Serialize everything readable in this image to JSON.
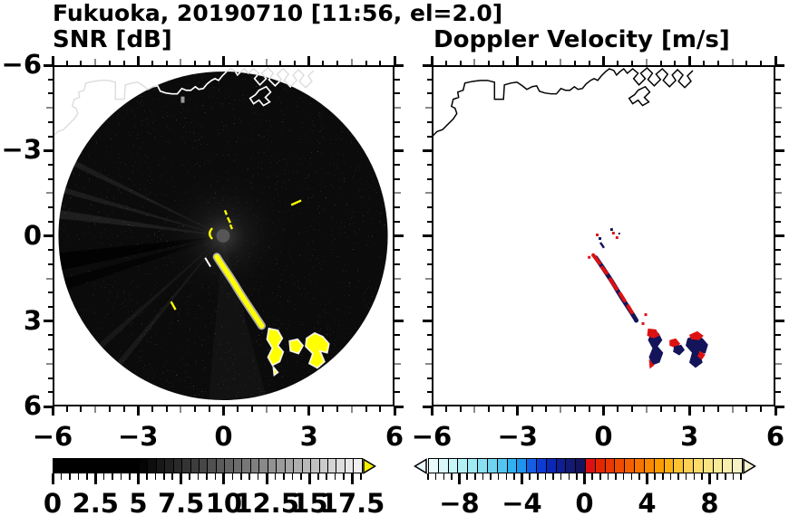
{
  "title": "Fukuoka, 20190710 [11:56, el=2.0]",
  "chart_data": {
    "type": "heatmap",
    "title": "Fukuoka, 20190710 [11:56, el=2.0]",
    "station": "Fukuoka",
    "date": "20190710",
    "time": "11:56",
    "elevation_deg": 2.0,
    "axes": {
      "xlim": [
        -6,
        6
      ],
      "ylim": [
        -6,
        6
      ],
      "x_major_ticks": [
        -6,
        -3,
        0,
        3,
        6
      ],
      "y_major_ticks": [
        -6,
        -3,
        0,
        3,
        6
      ],
      "x_tick_labels": [
        "−6",
        "−3",
        "0",
        "3",
        "6"
      ],
      "y_tick_labels": [
        "6",
        "3",
        "0",
        "−3",
        "−6"
      ],
      "minor_tick_step": 0.5,
      "mid_gray_ticks": [
        -4.5,
        -1.5,
        1.5,
        4.5
      ],
      "grid": false
    },
    "panels": [
      {
        "name": "snr",
        "title": "SNR [dB]",
        "background": "black circular radar scan disk, radius ≈ 5.9 axis units, centered at (0,0) on white",
        "coastline_color": "#ffffff",
        "echo_color": "#ffff00",
        "features": [
          "white coastline across top of disk with harbor structures near (1.2,5.5)–(3.2,4.6)",
          "bright yellow high-SNR streak from (−0.2,−0.8) to (1.4,−3.2)",
          "yellow blob cluster with white fringe between (1.6,−3.2) and (3.6,−4.6)",
          "small yellow echo at (2.6,1.2)",
          "small yellow echo at (−1.8,−2.5)",
          "gray center blob with faint radial spokes and dark blocked sectors toward WSW",
          "faint speckle noise over the disk"
        ],
        "colorbar": {
          "label": "SNR [dB]",
          "range": [
            0,
            18
          ],
          "cell_step": 0.5,
          "tick_values": [
            0,
            2.5,
            5,
            7.5,
            10,
            12.5,
            15,
            17.5
          ],
          "tick_labels": [
            "0",
            "2.5",
            "5",
            "7.5",
            "10",
            "12.5",
            "15",
            "17.5"
          ],
          "minor_tick_step": 0.5,
          "style": "grayscale, solid black below 5 dB ramping to near-white at 18 dB",
          "black_below": 5,
          "ramp_min_gray": 0,
          "ramp_max_gray": 245,
          "over_arrow_color": "#f5ee00"
        }
      },
      {
        "name": "velocity",
        "title": "Doppler Velocity [m/s]",
        "background": "white",
        "coastline_color": "#000000",
        "negative_color": "#14145a",
        "positive_color": "#dd1111",
        "features": [
          "black coastline across top with harbor structures",
          "echo streak from (−0.3,−0.7) to (1.2,−3.0) with mixed positive (red) and negative (navy) velocities",
          "red/navy blob cluster between (1.5,−3.2) and (3.3,−4.5)",
          "scattered red/navy specks near (−0.2,0.1)"
        ],
        "colorbar": {
          "label": "Doppler Velocity [m/s]",
          "range": [
            -10,
            10
          ],
          "cell_step": 0.625,
          "tick_values": [
            -8,
            -4,
            0,
            4,
            8
          ],
          "tick_labels": [
            "−8",
            "−4",
            "0",
            "4",
            "8"
          ],
          "minor_tick_step": 0.5,
          "cells": [
            "#e8fcfc",
            "#d8f8fa",
            "#c6f4f8",
            "#b4eff6",
            "#a0eaf4",
            "#8ae0f2",
            "#70d4f0",
            "#52c6f0",
            "#30b2f0",
            "#1e94ee",
            "#155fe4",
            "#0c3cd2",
            "#0a28b4",
            "#0f1e92",
            "#131a74",
            "#14145a",
            "#dd1111",
            "#e42600",
            "#ea3800",
            "#f04c00",
            "#f46000",
            "#f77400",
            "#fa8800",
            "#fc9c00",
            "#fdb014",
            "#fdc232",
            "#fcd052",
            "#fbdc6a",
            "#fae482",
            "#f9ea98",
            "#f8efae",
            "#f7f2c6"
          ],
          "under_arrow_color": "#eafcfc",
          "over_arrow_color": "#f6f3d2"
        }
      }
    ]
  }
}
